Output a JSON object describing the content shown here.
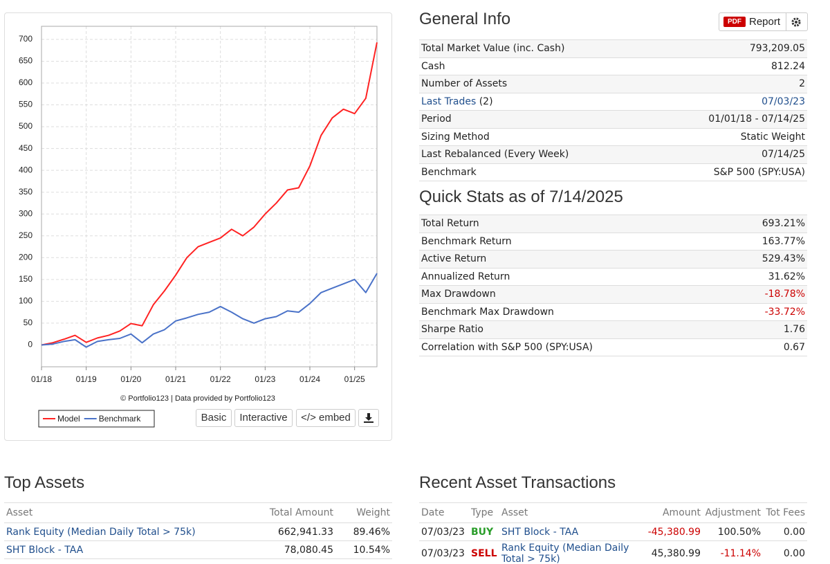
{
  "chart_data": {
    "type": "line",
    "x": [
      "01/18",
      "04/18",
      "07/18",
      "10/18",
      "01/19",
      "04/19",
      "07/19",
      "10/19",
      "01/20",
      "04/20",
      "07/20",
      "10/20",
      "01/21",
      "04/21",
      "07/21",
      "10/21",
      "01/22",
      "04/22",
      "07/22",
      "10/22",
      "01/23",
      "04/23",
      "07/23",
      "10/23",
      "01/24",
      "04/24",
      "07/24",
      "10/24",
      "01/25",
      "04/25",
      "07/25"
    ],
    "xticks": [
      "01/18",
      "01/19",
      "01/20",
      "01/21",
      "01/22",
      "01/23",
      "01/24",
      "01/25"
    ],
    "ylim": [
      -50,
      730
    ],
    "yticks": [
      0,
      50,
      100,
      150,
      200,
      250,
      300,
      350,
      400,
      450,
      500,
      550,
      600,
      650,
      700
    ],
    "grid": true,
    "legend": "bottom-left",
    "series": [
      {
        "name": "Model",
        "color": "#ff2222",
        "values": [
          0,
          5,
          13,
          22,
          6,
          16,
          22,
          32,
          49,
          44,
          92,
          124,
          160,
          200,
          225,
          235,
          245,
          265,
          250,
          270,
          300,
          325,
          355,
          360,
          410,
          480,
          520,
          540,
          530,
          565,
          693
        ]
      },
      {
        "name": "Benchmark",
        "color": "#4a72c8",
        "values": [
          0,
          2,
          8,
          12,
          -5,
          8,
          12,
          15,
          25,
          5,
          25,
          35,
          55,
          62,
          70,
          75,
          88,
          75,
          60,
          50,
          60,
          65,
          78,
          75,
          95,
          120,
          130,
          140,
          150,
          120,
          164
        ]
      }
    ],
    "credit": "© Portfolio123 | Data provided by Portfolio123"
  },
  "chart_buttons": [
    "Basic",
    "Interactive",
    "</> embed"
  ],
  "general_info": {
    "title": "General Info",
    "pdf": "PDF",
    "report": "Report",
    "rows": [
      [
        "Total Market Value (inc. Cash)",
        "793,209.05"
      ],
      [
        "Cash",
        "812.24"
      ],
      [
        "Number of Assets",
        "2"
      ],
      [
        "Last Trades",
        "(2)",
        "07/03/23"
      ],
      [
        "Period",
        "01/01/18 - 07/14/25"
      ],
      [
        "Sizing Method",
        "Static Weight"
      ],
      [
        "Last Rebalanced (Every Week)",
        "07/14/25"
      ],
      [
        "Benchmark",
        "S&P 500 (SPY:USA)"
      ]
    ]
  },
  "quick_stats": {
    "title": "Quick Stats as of 7/14/2025",
    "rows": [
      [
        "Total Return",
        "693.21%"
      ],
      [
        "Benchmark Return",
        "163.77%"
      ],
      [
        "Active Return",
        "529.43%"
      ],
      [
        "Annualized Return",
        "31.62%"
      ],
      [
        "Max Drawdown",
        "-18.78%"
      ],
      [
        "Benchmark Max Drawdown",
        "-33.72%"
      ],
      [
        "Sharpe Ratio",
        "1.76"
      ],
      [
        "Correlation with S&P 500 (SPY:USA)",
        "0.67"
      ]
    ]
  },
  "top_assets": {
    "title": "Top Assets",
    "columns": [
      "Asset",
      "Total Amount",
      "Weight"
    ],
    "rows": [
      [
        "Rank Equity (Median Daily Total > 75k)",
        "662,941.33",
        "89.46%"
      ],
      [
        "SHT Block - TAA",
        "78,080.45",
        "10.54%"
      ]
    ]
  },
  "transactions": {
    "title": "Recent Asset Transactions",
    "columns": [
      "Date",
      "Type",
      "Asset",
      "Amount",
      "Adjustment",
      "Tot Fees"
    ],
    "rows": [
      [
        "07/03/23",
        "BUY",
        "SHT Block - TAA",
        "-45,380.99",
        "100.50%",
        "0.00"
      ],
      [
        "07/03/23",
        "SELL",
        "Rank Equity (Median Daily Total > 75k)",
        "45,380.99",
        "-11.14%",
        "0.00"
      ]
    ]
  }
}
